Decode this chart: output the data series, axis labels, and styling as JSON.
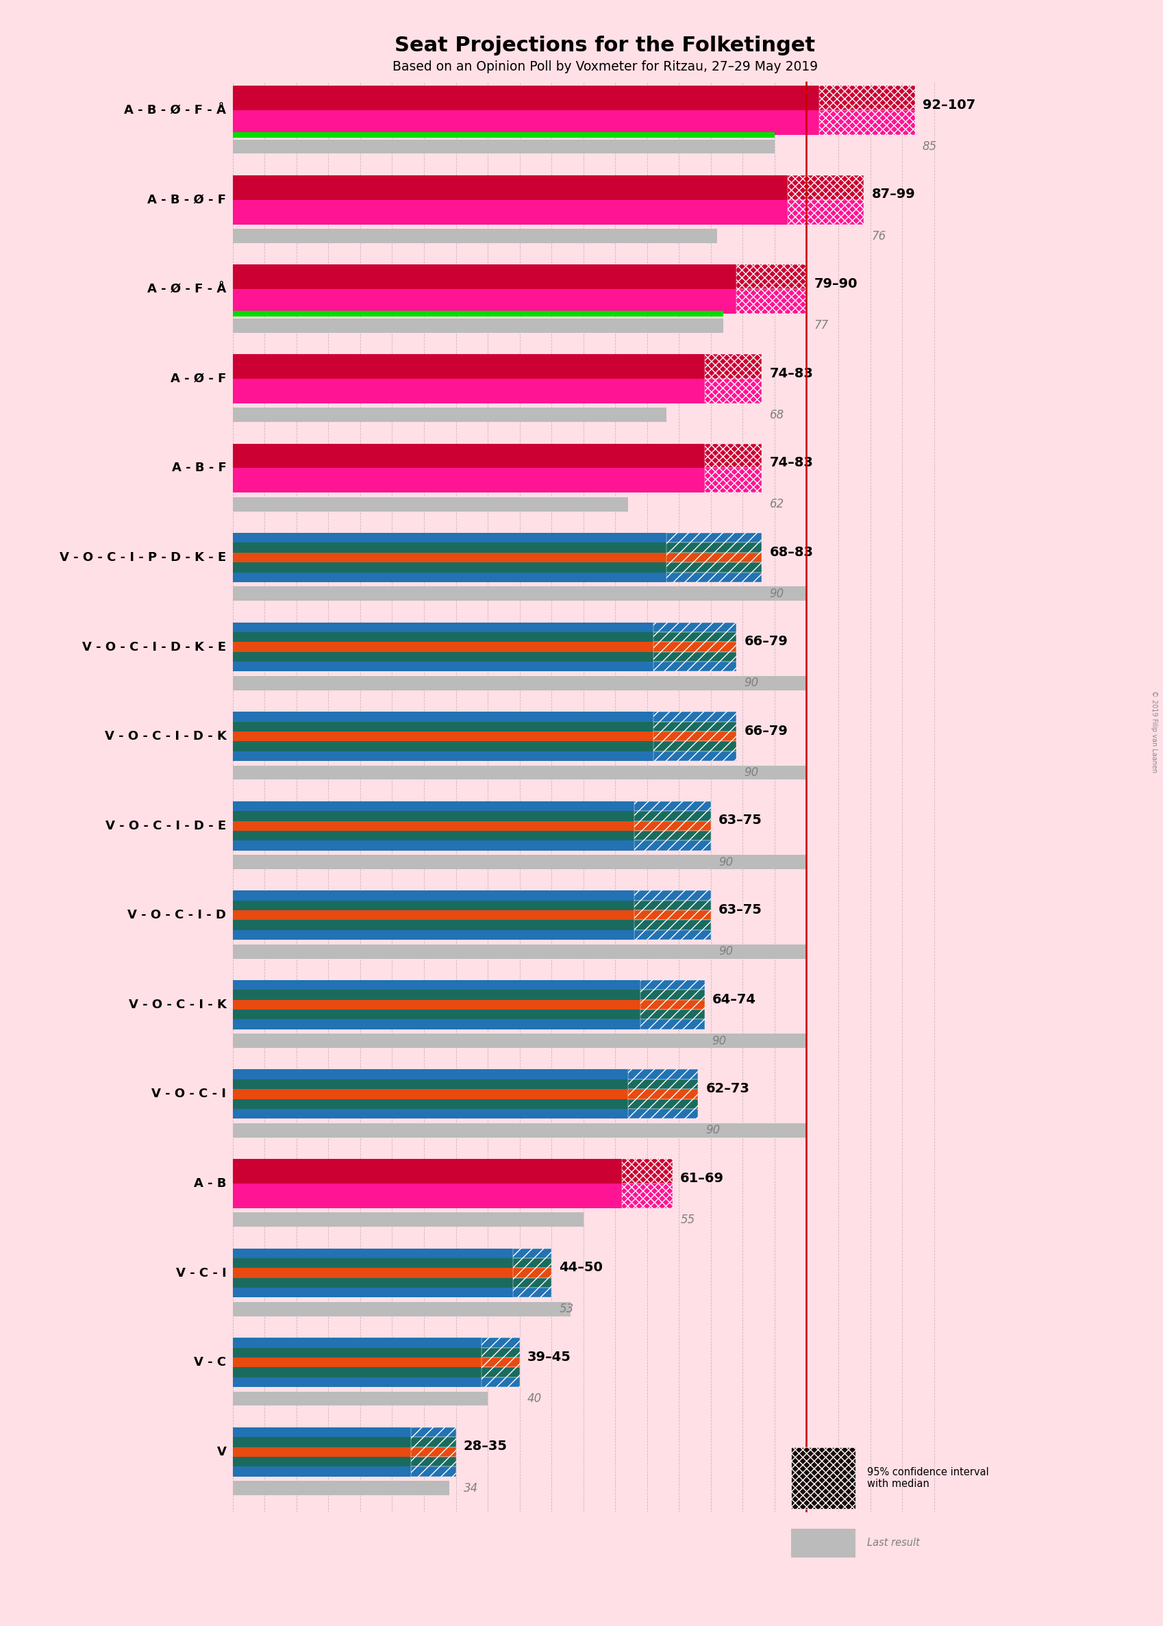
{
  "title_text": "Seat Projections for the Folketinget",
  "subtitle": "Based on an Opinion Poll by Voxmeter for Ritzau, 27–29 May 2019",
  "copyright": "© 2019 Filip van Laanen",
  "background_color": "#FFE0E6",
  "xlim_max": 115,
  "majority": 90,
  "categories": [
    "A - B - Ø - F - Å",
    "A - B - Ø - F",
    "A - Ø - F - Å",
    "A - Ø - F",
    "A - B - F",
    "V - O - C - I - P - D - K - E",
    "V - O - C - I - D - K - E",
    "V - O - C - I - D - K",
    "V - O - C - I - D - E",
    "V - O - C - I - D",
    "V - O - C - I - K",
    "V - O - C - I",
    "A - B",
    "V - C - I",
    "V - C",
    "V"
  ],
  "underlined": [
    11,
    13
  ],
  "ci_low": [
    92,
    87,
    79,
    74,
    74,
    68,
    66,
    66,
    63,
    63,
    64,
    62,
    61,
    44,
    39,
    28
  ],
  "ci_high": [
    107,
    99,
    90,
    83,
    83,
    83,
    79,
    79,
    75,
    75,
    74,
    73,
    69,
    50,
    45,
    35
  ],
  "last_result": [
    85,
    76,
    77,
    68,
    62,
    90,
    90,
    90,
    90,
    90,
    90,
    90,
    55,
    53,
    40,
    34
  ],
  "range_labels": [
    "92–107",
    "87–99",
    "79–90",
    "74–83",
    "74–83",
    "68–83",
    "66–79",
    "66–79",
    "63–75",
    "63–75",
    "64–74",
    "62–73",
    "61–69",
    "44–50",
    "39–45",
    "28–35"
  ],
  "is_left": [
    true,
    true,
    true,
    true,
    true,
    false,
    false,
    false,
    false,
    false,
    false,
    false,
    true,
    false,
    false,
    false
  ],
  "has_green": [
    true,
    false,
    true,
    false,
    false,
    false,
    false,
    false,
    false,
    false,
    false,
    false,
    false,
    false,
    false,
    false
  ],
  "left_color_dark": "#CC0033",
  "left_color_bright": "#FF1493",
  "right_stripe_colors": [
    "#2272B4",
    "#1A6B5E",
    "#E84A10",
    "#1A6B5E",
    "#2272B4"
  ],
  "gray_color": "#BBBBBB",
  "green_color": "#00DD00",
  "red_line_color": "#CC0000",
  "grid_color": "#999999",
  "legend_ci_color": "#1A0A0A",
  "legend_ci_hatch_color": "#888888"
}
